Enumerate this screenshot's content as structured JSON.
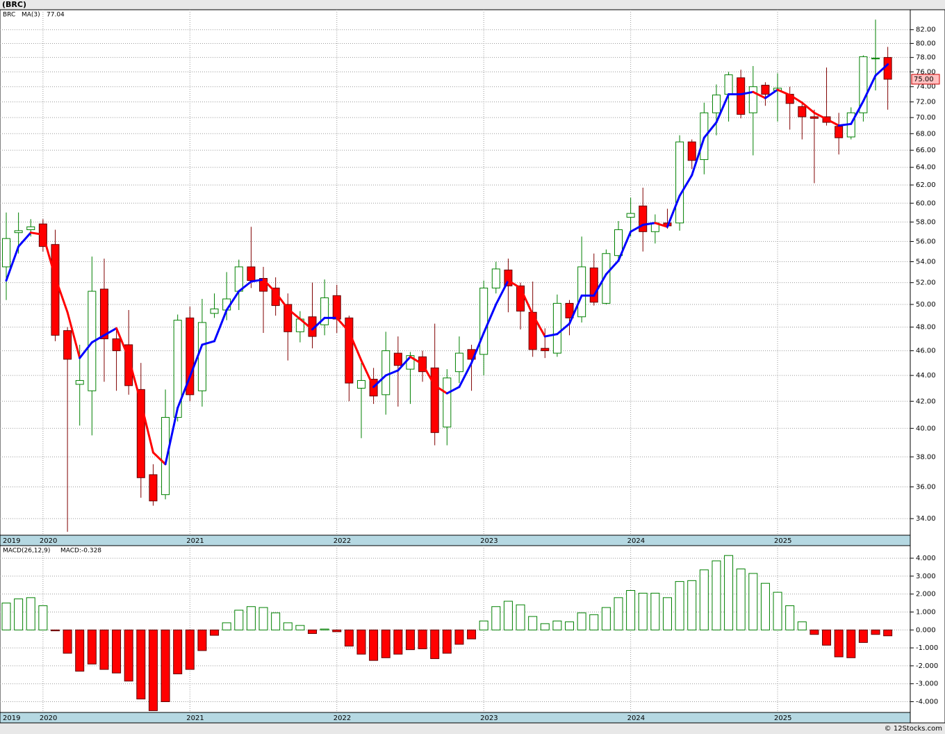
{
  "source": "© 12Stocks.com",
  "chart_data": [
    {
      "type": "candlestick",
      "title": "(BRC)",
      "symbol": "BRC",
      "categories": [
        "2019",
        null,
        null,
        "2020",
        null,
        null,
        null,
        null,
        null,
        null,
        null,
        null,
        null,
        null,
        null,
        "2021",
        null,
        null,
        null,
        null,
        null,
        null,
        null,
        null,
        null,
        null,
        null,
        "2022",
        null,
        null,
        null,
        null,
        null,
        null,
        null,
        null,
        null,
        null,
        null,
        "2023",
        null,
        null,
        null,
        null,
        null,
        null,
        null,
        null,
        null,
        null,
        null,
        "2024",
        null,
        null,
        null,
        null,
        null,
        null,
        null,
        null,
        null,
        null,
        null,
        "2025",
        null,
        null,
        null,
        null,
        null,
        null,
        null,
        null,
        null
      ],
      "open": [
        53.5,
        56.9,
        57.2,
        57.8,
        55.7,
        47.7,
        43.3,
        42.8,
        51.4,
        47,
        46.5,
        42.9,
        36.8,
        35.5,
        40.8,
        48.8,
        42.8,
        49.2,
        49.5,
        51.2,
        53.5,
        52.4,
        51.5,
        50,
        47.6,
        48.9,
        48.2,
        50.8,
        48.8,
        43.0,
        43.7,
        42.5,
        45.8,
        44.5,
        45.5,
        44.6,
        40.1,
        44.3,
        46.1,
        45.7,
        51.5,
        53.2,
        51.7,
        49.3,
        46.2,
        45.8,
        50.1,
        48.9,
        53.4,
        50.1,
        54.6,
        58.5,
        59.7,
        57,
        57.9,
        57.9,
        67,
        64.9,
        70.6,
        73,
        75.2,
        70.6,
        74.2,
        73.5,
        73,
        71.4,
        70.1,
        70.1,
        68.9,
        67.6,
        70.6,
        77.8,
        78
      ],
      "high": [
        59,
        59,
        58.3,
        58.3,
        57.2,
        48,
        46.5,
        54.5,
        54.3,
        47.9,
        49.5,
        45,
        37.5,
        42.9,
        49.1,
        49.8,
        50.5,
        51,
        53,
        54.2,
        57.5,
        53.5,
        52.5,
        51,
        49.4,
        52,
        52.3,
        51.8,
        49,
        45,
        44.6,
        47.6,
        47.2,
        45.9,
        46,
        48.3,
        44.5,
        47.2,
        46.5,
        52.2,
        54,
        54.3,
        52,
        52.1,
        47.9,
        50.9,
        50.4,
        56.5,
        54.8,
        55.2,
        58.1,
        60.6,
        61.7,
        58.8,
        59.4,
        67.8,
        67.3,
        71.9,
        74.3,
        76,
        76.3,
        76.8,
        74.6,
        75.8,
        74,
        71.8,
        71,
        76.6,
        70.6,
        71.3,
        78.3,
        83.5,
        79.5
      ],
      "low": [
        50.4,
        54.8,
        56.5,
        55,
        46.8,
        33.2,
        40.2,
        39.5,
        43.5,
        42.8,
        42.5,
        35.3,
        34.8,
        35.2,
        40.5,
        42,
        41.6,
        48.8,
        48.6,
        49.5,
        51.5,
        47.5,
        49,
        45.2,
        46.7,
        46.2,
        47.3,
        47.5,
        42,
        39.3,
        41.8,
        41,
        41.6,
        41.8,
        43.5,
        38.8,
        38.8,
        43.4,
        42.8,
        44,
        51,
        49.3,
        47.8,
        45.5,
        45.4,
        45.5,
        47.3,
        48.4,
        49.9,
        50,
        54,
        56.5,
        55,
        55.8,
        57.3,
        57.1,
        63.8,
        63.2,
        67.8,
        69.5,
        69.9,
        65.4,
        71.5,
        69.5,
        68.5,
        67.3,
        62.2,
        69,
        65.5,
        67.3,
        69.5,
        73.5,
        71
      ],
      "close": [
        56.3,
        57.1,
        57.5,
        55.5,
        47.3,
        45.3,
        43.6,
        51.2,
        47.0,
        46.0,
        43.2,
        36.6,
        35.1,
        40.8,
        48.6,
        42.5,
        48.4,
        49.6,
        50.5,
        53.5,
        52.2,
        51.2,
        49.9,
        47.6,
        48.7,
        47.2,
        50.6,
        48.7,
        43.4,
        43.6,
        42.4,
        46.0,
        44.8,
        45.6,
        44.3,
        39.7,
        43.8,
        45.8,
        45.3,
        51.5,
        53.3,
        51.7,
        49.4,
        46.1,
        46.0,
        50.1,
        48.8,
        53.5,
        50.2,
        54.8,
        57.2,
        58.9,
        57.0,
        57.9,
        57.6,
        67.0,
        64.8,
        70.6,
        72.9,
        75.6,
        70.4,
        74.0,
        73.0,
        73.8,
        71.8,
        70.1,
        69.9,
        69.4,
        67.5,
        70.6,
        78.1,
        77.9,
        75.0
      ],
      "close_label": "75.00",
      "up_color": "#008000",
      "down_color": "#ff0000",
      "series": [
        {
          "name": "MA(3)",
          "color": "#0000ff",
          "down_color": "#ff0000",
          "value_label": "77.04",
          "values": [
            52.2,
            55.5,
            56.9,
            56.7,
            52.5,
            49.3,
            45.4,
            46.7,
            47.3,
            47.9,
            45.4,
            41.9,
            38.3,
            37.5,
            41.5,
            43.9,
            46.5,
            46.8,
            49.5,
            51.2,
            52.1,
            52.3,
            51.1,
            49.6,
            48.7,
            47.8,
            48.8,
            48.8,
            47.6,
            45.2,
            43.1,
            44.0,
            44.4,
            45.5,
            44.9,
            43.2,
            42.6,
            43.1,
            45.0,
            47.5,
            50.0,
            52.2,
            51.5,
            49.1,
            47.2,
            47.4,
            48.3,
            50.8,
            50.8,
            52.8,
            54.1,
            57.0,
            57.7,
            57.9,
            57.5,
            60.8,
            63.1,
            67.5,
            69.4,
            73.0,
            73.0,
            73.3,
            72.5,
            73.6,
            72.9,
            71.9,
            70.6,
            69.8,
            69.0,
            69.2,
            72.1,
            75.5,
            77.04
          ]
        }
      ],
      "ylim": [
        33,
        85
      ],
      "log_scale": true,
      "grid": true,
      "yticks": [
        {
          "value": 34,
          "label": "34.00"
        },
        {
          "value": 36,
          "label": "36.00"
        },
        {
          "value": 38,
          "label": "38.00"
        },
        {
          "value": 40,
          "label": "40.00"
        },
        {
          "value": 42,
          "label": "42.00"
        },
        {
          "value": 44,
          "label": "44.00"
        },
        {
          "value": 46,
          "label": "46.00"
        },
        {
          "value": 48,
          "label": "48.00"
        },
        {
          "value": 50,
          "label": "50.00"
        },
        {
          "value": 52,
          "label": "52.00"
        },
        {
          "value": 54,
          "label": "54.00"
        },
        {
          "value": 56,
          "label": "56.00"
        },
        {
          "value": 58,
          "label": "58.00"
        },
        {
          "value": 60,
          "label": "60.00"
        },
        {
          "value": 62,
          "label": "62.00"
        },
        {
          "value": 64,
          "label": "64.00"
        },
        {
          "value": 66,
          "label": "66.00"
        },
        {
          "value": 68,
          "label": "68.00"
        },
        {
          "value": 70,
          "label": "70.00"
        },
        {
          "value": 72,
          "label": "72.00"
        },
        {
          "value": 74,
          "label": "74.00"
        },
        {
          "value": 76,
          "label": "76.00"
        },
        {
          "value": 78,
          "label": "78.00"
        },
        {
          "value": 80,
          "label": "80.00"
        },
        {
          "value": 82,
          "label": "82.00"
        }
      ]
    },
    {
      "type": "bar",
      "title": "MACD(26,12,9)",
      "categories": [
        "2019",
        null,
        null,
        "2020",
        null,
        null,
        null,
        null,
        null,
        null,
        null,
        null,
        null,
        null,
        null,
        "2021",
        null,
        null,
        null,
        null,
        null,
        null,
        null,
        null,
        null,
        null,
        null,
        "2022",
        null,
        null,
        null,
        null,
        null,
        null,
        null,
        null,
        null,
        null,
        null,
        "2023",
        null,
        null,
        null,
        null,
        null,
        null,
        null,
        null,
        null,
        null,
        null,
        "2024",
        null,
        null,
        null,
        null,
        null,
        null,
        null,
        null,
        null,
        null,
        null,
        "2025",
        null,
        null,
        null,
        null,
        null,
        null,
        null,
        null,
        null
      ],
      "values": [
        1.5,
        1.73,
        1.8,
        1.35,
        -0.05,
        -1.3,
        -2.3,
        -1.9,
        -2.2,
        -2.4,
        -2.85,
        -3.85,
        -4.5,
        -4.0,
        -2.45,
        -2.2,
        -1.15,
        -0.3,
        0.4,
        1.1,
        1.3,
        1.25,
        0.95,
        0.4,
        0.25,
        -0.2,
        0.05,
        -0.1,
        -0.9,
        -1.35,
        -1.7,
        -1.55,
        -1.35,
        -1.1,
        -1.05,
        -1.6,
        -1.3,
        -0.8,
        -0.5,
        0.5,
        1.3,
        1.6,
        1.4,
        0.75,
        0.35,
        0.5,
        0.45,
        0.95,
        0.85,
        1.25,
        1.8,
        2.2,
        2.05,
        2.05,
        1.8,
        2.7,
        2.75,
        3.35,
        3.85,
        4.15,
        3.4,
        3.15,
        2.6,
        2.1,
        1.35,
        0.45,
        -0.25,
        -0.85,
        -1.5,
        -1.55,
        -0.7,
        -0.25,
        -0.328
      ],
      "value_label": "MACD:-0.328",
      "up_color": "#008000",
      "down_color": "#ff0000",
      "ylim": [
        -4.6,
        4.7
      ],
      "grid": true,
      "yticks": [
        {
          "value": -4,
          "label": "-4.000"
        },
        {
          "value": -3,
          "label": "-3.000"
        },
        {
          "value": -2,
          "label": "-2.000"
        },
        {
          "value": -1,
          "label": "-1.000"
        },
        {
          "value": 0,
          "label": "0.000"
        },
        {
          "value": 1,
          "label": "1.000"
        },
        {
          "value": 2,
          "label": "2.000"
        },
        {
          "value": 3,
          "label": "3.000"
        },
        {
          "value": 4,
          "label": "4.000"
        }
      ]
    }
  ]
}
